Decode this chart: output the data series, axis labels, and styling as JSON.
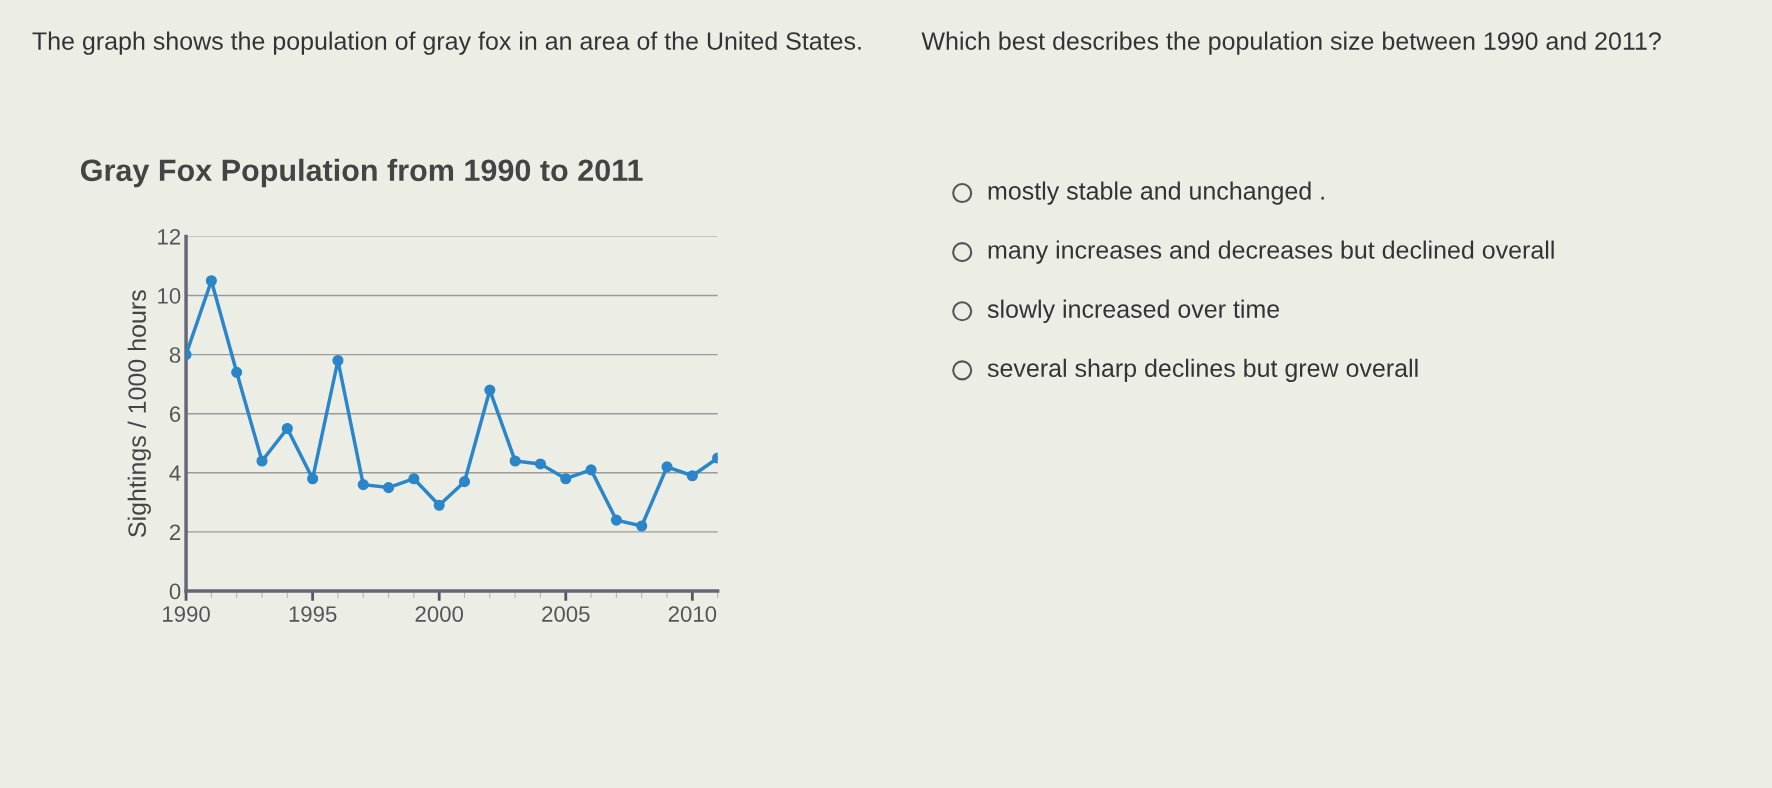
{
  "chart_data": {
    "type": "line",
    "title": "Gray Fox Population from 1990 to 2011",
    "ylabel": "Sightings / 1000 hours",
    "x": [
      1990,
      1991,
      1992,
      1993,
      1994,
      1995,
      1996,
      1997,
      1998,
      1999,
      2000,
      2001,
      2002,
      2003,
      2004,
      2005,
      2006,
      2007,
      2008,
      2009,
      2010,
      2011
    ],
    "series": [
      {
        "color": "#2a86c8",
        "values": [
          8.0,
          10.5,
          7.4,
          4.4,
          5.5,
          3.8,
          7.8,
          3.6,
          3.5,
          3.8,
          2.9,
          3.7,
          6.8,
          4.4,
          4.3,
          3.8,
          4.1,
          2.4,
          2.2,
          4.2,
          3.9,
          4.5
        ]
      }
    ],
    "xlim": [
      1990,
      2011
    ],
    "xticks": [
      1990,
      1995,
      2000,
      2005,
      2010
    ],
    "ylim": [
      0,
      12
    ],
    "yticks": [
      0,
      2,
      4,
      6,
      8,
      10,
      12
    ],
    "grid": "y",
    "marker": "circle",
    "line_style": "solid",
    "legend": false,
    "annotations": [
      "The graph shows the population of gray fox in an area of the United States.",
      "Which best describes the population size between 1990 and 2011?",
      "mostly stable and unchanged .",
      "many increases and decreases but declined overall",
      "slowly increased over time",
      "several sharp declines but grew overall"
    ]
  }
}
